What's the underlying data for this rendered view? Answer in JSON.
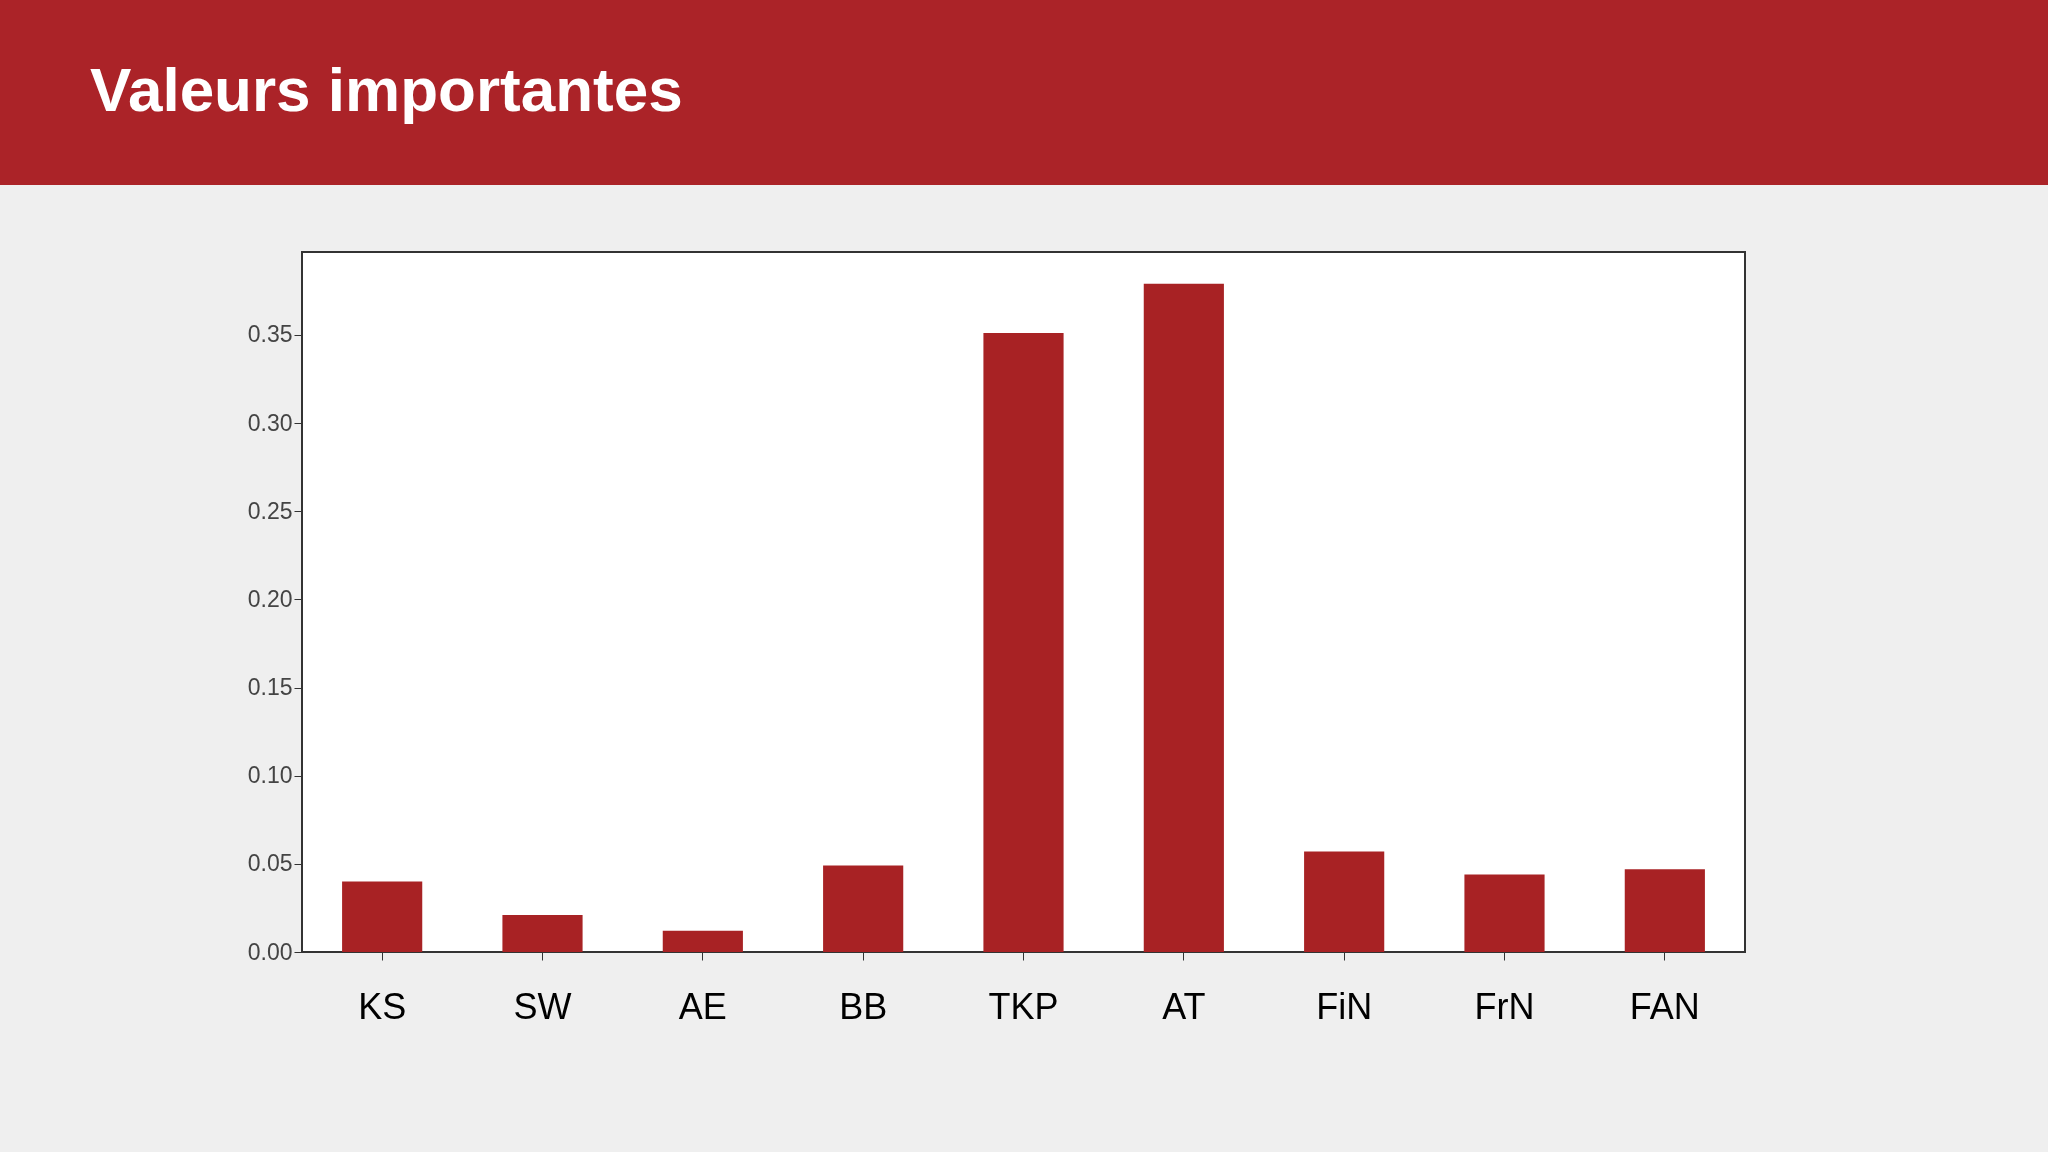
{
  "chart_data": {
    "type": "bar",
    "title": "Valeurs importantes",
    "categories": [
      "KS",
      "SW",
      "AE",
      "BB",
      "TKP",
      "AT",
      "FiN",
      "FrN",
      "FAN"
    ],
    "values": [
      0.04,
      0.021,
      0.012,
      0.049,
      0.351,
      0.379,
      0.057,
      0.044,
      0.047
    ],
    "color": "#a82224",
    "ylim": [
      0,
      0.397
    ],
    "yticks": [
      {
        "value": 0,
        "label": "0.00"
      },
      {
        "value": 0.05,
        "label": "0.05"
      },
      {
        "value": 0.1,
        "label": "0.10"
      },
      {
        "value": 0.15,
        "label": "0.15"
      },
      {
        "value": 0.2,
        "label": "0.20"
      },
      {
        "value": 0.25,
        "label": "0.25"
      },
      {
        "value": 0.3,
        "label": "0.30"
      },
      {
        "value": 0.35,
        "label": "0.35"
      }
    ],
    "grid": false
  }
}
